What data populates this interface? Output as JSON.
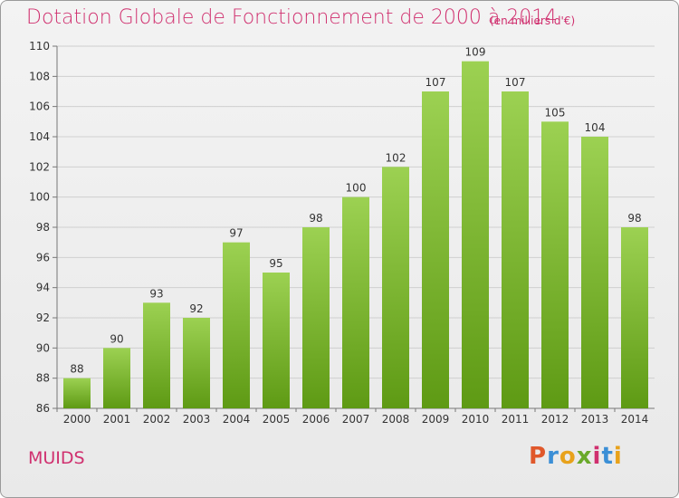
{
  "header": {
    "title": "Dotation Globale de Fonctionnement de 2000 à 2014",
    "subtitle": "(en milliers d'€)"
  },
  "footer": {
    "commune": "MUIDS",
    "logo_text": "Proxiti"
  },
  "colors": {
    "title": "#d0306f",
    "bar_top": "#9cd152",
    "bar_bottom": "#5e9a14",
    "grid": "#cccccc"
  },
  "chart_data": {
    "type": "bar",
    "title": "Dotation Globale de Fonctionnement de 2000 à 2014",
    "subtitle": "(en milliers d'€)",
    "categories": [
      "2000",
      "2001",
      "2002",
      "2003",
      "2004",
      "2005",
      "2006",
      "2007",
      "2008",
      "2009",
      "2010",
      "2011",
      "2012",
      "2013",
      "2014"
    ],
    "values": [
      88,
      90,
      93,
      92,
      97,
      95,
      98,
      100,
      102,
      107,
      109,
      107,
      105,
      104,
      98
    ],
    "ylim": [
      86,
      110
    ],
    "yticks": [
      86,
      88,
      90,
      92,
      94,
      96,
      98,
      100,
      102,
      104,
      106,
      108,
      110
    ],
    "grid": true,
    "xlabel": "",
    "ylabel": ""
  }
}
